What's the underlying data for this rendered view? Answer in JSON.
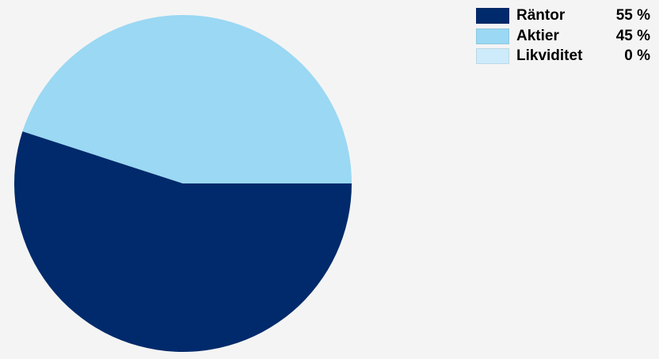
{
  "chart_data": {
    "type": "pie",
    "title": "",
    "series": [
      {
        "name": "Räntor",
        "value": 55,
        "value_label": "55 %",
        "color": "#002a6b"
      },
      {
        "name": "Aktier",
        "value": 45,
        "value_label": "45 %",
        "color": "#9ad8f3"
      },
      {
        "name": "Likviditet",
        "value": 0,
        "value_label": "0 %",
        "color": "#cdebfa"
      }
    ],
    "legend_position": "top-right",
    "start": "3 o'clock, clockwise"
  }
}
